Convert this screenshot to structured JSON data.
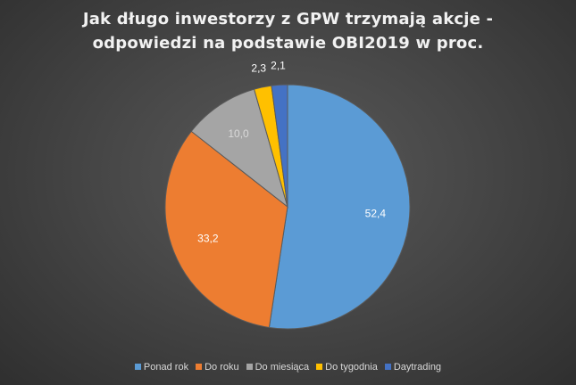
{
  "chart_data": {
    "type": "pie",
    "title": "Jak długo inwestorzy z GPW trzymają akcje - odpowiedzi na podstawie OBI2019 w proc.",
    "title_lines": [
      "Jak długo inwestorzy z GPW trzymają akcje -",
      "odpowiedzi na podstawie OBI2019 w proc."
    ],
    "categories": [
      "Ponad rok",
      "Do roku",
      "Do miesiąca",
      "Do tygodnia",
      "Daytrading"
    ],
    "values": [
      52.4,
      33.2,
      10.0,
      2.3,
      2.1
    ],
    "data_labels": [
      "52,4",
      "33,2",
      "10,0",
      "2,3",
      "2,1"
    ],
    "colors": [
      "#5b9bd5",
      "#ed7d31",
      "#a5a5a5",
      "#ffc000",
      "#4472c4"
    ],
    "label_colors": [
      "#ffffff",
      "#ffffff",
      "#d9d9d9",
      "#ffffff",
      "#ffffff"
    ],
    "legend_position": "bottom",
    "start_angle_deg": 0,
    "direction": "clockwise"
  }
}
